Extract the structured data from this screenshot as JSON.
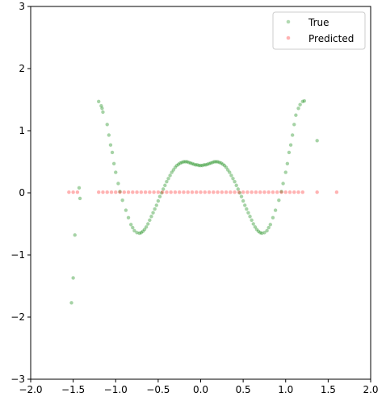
{
  "chart_data": {
    "type": "scatter",
    "title": "",
    "xlabel": "",
    "ylabel": "",
    "xlim": [
      -2.0,
      2.0
    ],
    "ylim": [
      -3,
      3
    ],
    "grid": false,
    "legend_position": "top-right",
    "x_ticks": [
      "−2.0",
      "−1.5",
      "−1.0",
      "−0.5",
      "0.0",
      "0.5",
      "1.0",
      "1.5",
      "2.0"
    ],
    "y_ticks": [
      "−3",
      "−2",
      "−1",
      "0",
      "1",
      "2",
      "3"
    ],
    "x_tick_values": [
      -2.0,
      -1.5,
      -1.0,
      -0.5,
      0.0,
      0.5,
      1.0,
      1.5,
      2.0
    ],
    "y_tick_values": [
      -3,
      -2,
      -1,
      0,
      1,
      2,
      3
    ],
    "series": [
      {
        "name": "True",
        "color": "#008000",
        "x": [
          -1.52,
          -1.5,
          -1.48,
          -1.43,
          -1.42,
          -1.2,
          -1.17,
          -1.16,
          -1.15,
          -1.1,
          -1.08,
          -1.06,
          -1.04,
          -1.02,
          -1.0,
          -0.97,
          -0.95,
          -0.92,
          -0.88,
          -0.85,
          -0.82,
          -0.8,
          -0.78,
          -0.75,
          -0.72,
          -0.7,
          -0.68,
          -0.66,
          -0.64,
          -0.62,
          -0.6,
          -0.58,
          -0.56,
          -0.54,
          -0.52,
          -0.5,
          -0.48,
          -0.46,
          -0.44,
          -0.42,
          -0.4,
          -0.38,
          -0.36,
          -0.34,
          -0.32,
          -0.3,
          -0.28,
          -0.26,
          -0.24,
          -0.22,
          -0.2,
          -0.18,
          -0.16,
          -0.14,
          -0.12,
          -0.1,
          -0.08,
          -0.06,
          -0.04,
          -0.02,
          0.0,
          0.02,
          0.04,
          0.06,
          0.08,
          0.1,
          0.12,
          0.14,
          0.16,
          0.18,
          0.2,
          0.22,
          0.24,
          0.26,
          0.28,
          0.3,
          0.32,
          0.34,
          0.36,
          0.38,
          0.4,
          0.42,
          0.44,
          0.46,
          0.48,
          0.5,
          0.52,
          0.54,
          0.56,
          0.58,
          0.6,
          0.62,
          0.64,
          0.66,
          0.68,
          0.7,
          0.72,
          0.75,
          0.78,
          0.8,
          0.82,
          0.85,
          0.88,
          0.92,
          0.95,
          0.97,
          1.0,
          1.02,
          1.04,
          1.06,
          1.08,
          1.1,
          1.12,
          1.15,
          1.17,
          1.2,
          1.22,
          1.37
        ],
        "y": [
          -1.77,
          -1.37,
          -0.68,
          0.08,
          -0.09,
          1.47,
          1.4,
          1.36,
          1.3,
          1.1,
          0.93,
          0.77,
          0.65,
          0.47,
          0.33,
          0.15,
          0.02,
          -0.12,
          -0.28,
          -0.4,
          -0.51,
          -0.56,
          -0.61,
          -0.64,
          -0.65,
          -0.64,
          -0.62,
          -0.59,
          -0.55,
          -0.5,
          -0.44,
          -0.38,
          -0.32,
          -0.26,
          -0.2,
          -0.13,
          -0.06,
          0.0,
          0.06,
          0.12,
          0.18,
          0.23,
          0.28,
          0.33,
          0.37,
          0.41,
          0.44,
          0.46,
          0.48,
          0.49,
          0.5,
          0.5,
          0.5,
          0.49,
          0.48,
          0.47,
          0.46,
          0.45,
          0.45,
          0.44,
          0.44,
          0.44,
          0.45,
          0.45,
          0.46,
          0.47,
          0.48,
          0.49,
          0.5,
          0.5,
          0.5,
          0.49,
          0.48,
          0.46,
          0.44,
          0.41,
          0.37,
          0.33,
          0.28,
          0.23,
          0.18,
          0.12,
          0.06,
          0.0,
          -0.06,
          -0.13,
          -0.2,
          -0.26,
          -0.32,
          -0.38,
          -0.44,
          -0.5,
          -0.55,
          -0.59,
          -0.62,
          -0.64,
          -0.65,
          -0.64,
          -0.61,
          -0.56,
          -0.51,
          -0.4,
          -0.28,
          -0.12,
          0.02,
          0.15,
          0.33,
          0.47,
          0.65,
          0.77,
          0.93,
          1.1,
          1.25,
          1.36,
          1.42,
          1.47,
          1.48,
          0.84
        ]
      },
      {
        "name": "Predicted",
        "color": "#ff0000",
        "x": [
          -1.55,
          -1.5,
          -1.45,
          -1.2,
          -1.15,
          -1.1,
          -1.05,
          -1.0,
          -0.95,
          -0.9,
          -0.85,
          -0.8,
          -0.75,
          -0.7,
          -0.65,
          -0.6,
          -0.55,
          -0.5,
          -0.45,
          -0.4,
          -0.35,
          -0.3,
          -0.25,
          -0.2,
          -0.15,
          -0.1,
          -0.05,
          0.0,
          0.05,
          0.1,
          0.15,
          0.2,
          0.25,
          0.3,
          0.35,
          0.4,
          0.45,
          0.5,
          0.55,
          0.6,
          0.65,
          0.7,
          0.75,
          0.8,
          0.85,
          0.9,
          0.95,
          1.0,
          1.05,
          1.1,
          1.15,
          1.2,
          1.37,
          1.6
        ],
        "y": [
          0.01,
          0.01,
          0.01,
          0.01,
          0.01,
          0.01,
          0.01,
          0.01,
          0.01,
          0.01,
          0.01,
          0.01,
          0.01,
          0.01,
          0.01,
          0.01,
          0.01,
          0.01,
          0.01,
          0.01,
          0.01,
          0.01,
          0.01,
          0.01,
          0.01,
          0.01,
          0.01,
          0.01,
          0.01,
          0.01,
          0.01,
          0.01,
          0.01,
          0.01,
          0.01,
          0.01,
          0.01,
          0.01,
          0.01,
          0.01,
          0.01,
          0.01,
          0.01,
          0.01,
          0.01,
          0.01,
          0.01,
          0.01,
          0.01,
          0.01,
          0.01,
          0.01,
          0.01,
          0.01
        ]
      }
    ]
  }
}
